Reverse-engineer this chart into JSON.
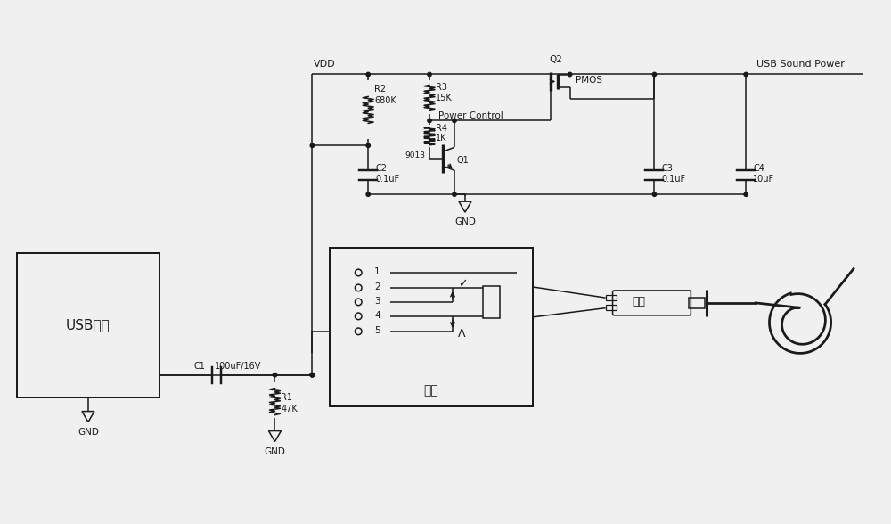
{
  "bg_color": "#f0f0f0",
  "line_color": "#1a1a1a",
  "components": {
    "vdd_label": "VDD",
    "usb_sound_power_label": "USB Sound Power",
    "r1": {
      "label": "R1",
      "value": "47K"
    },
    "r2": {
      "label": "R2",
      "value": "680K"
    },
    "r3": {
      "label": "R3",
      "value": "15K"
    },
    "r4": {
      "label": "R4",
      "value": "1K"
    },
    "c1": {
      "label": "C1",
      "value": "100uF/16V"
    },
    "c2": {
      "label": "C2",
      "value": "0.1uF"
    },
    "c3": {
      "label": "C3",
      "value": "0.1uF"
    },
    "c4": {
      "label": "C4",
      "value": "10uF"
    },
    "q1_label": "9013",
    "q1_ref": "Q1",
    "q2_label": "Q2",
    "q2_type": "PMOS",
    "power_control": "Power Control",
    "usb_card_label": "USB声卡",
    "socket_label": "插座",
    "plug_label": "插头"
  }
}
